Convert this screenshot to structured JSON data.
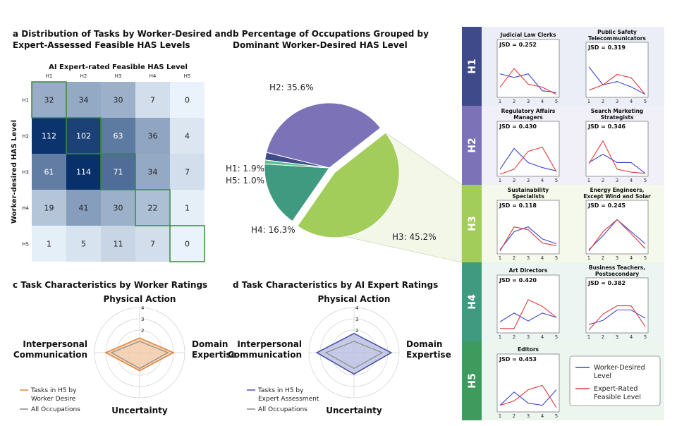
{
  "panels": {
    "a": {
      "letter": "a",
      "title1": "Distribution of Tasks by Worker-Desired and",
      "title2": "Expert-Assessed Feasible HAS Levels"
    },
    "b": {
      "letter": "b",
      "title1": "Percentage of Occupations Grouped by",
      "title2": "Dominant Worker-Desired HAS Level"
    },
    "c": {
      "letter": "c",
      "title": "Task Characteristics by Worker Ratings"
    },
    "d": {
      "letter": "d",
      "title": "Task Characteristics by AI Expert Ratings"
    }
  },
  "chart_data": [
    {
      "type": "heatmap",
      "title": "AI Expert-rated Feasible HAS Level",
      "xlabel": "AI Expert-rated Feasible HAS Level",
      "ylabel": "Worker-desired HAS Level",
      "x_categories": [
        "H1",
        "H2",
        "H3",
        "H4",
        "H5"
      ],
      "y_categories": [
        "H1",
        "H2",
        "H3",
        "H4",
        "H5"
      ],
      "values": [
        [
          32,
          34,
          30,
          7,
          0
        ],
        [
          112,
          102,
          63,
          36,
          4
        ],
        [
          61,
          114,
          71,
          34,
          7
        ],
        [
          19,
          41,
          30,
          22,
          1
        ],
        [
          1,
          5,
          11,
          7,
          0
        ]
      ],
      "color_max": 114,
      "low_color": "#eaf3fb",
      "high_color": "#08306b",
      "highlight_color": "#3a8a3a"
    },
    {
      "type": "pie",
      "labels": [
        "H1: 1.9%",
        "H2: 35.6%",
        "H3: 45.2%",
        "H4: 16.3%",
        "H5: 1.0%"
      ],
      "categories": [
        "H1",
        "H2",
        "H3",
        "H4",
        "H5"
      ],
      "values": [
        1.9,
        35.6,
        45.2,
        16.3,
        1.0
      ],
      "colors": [
        "#3f4a8a",
        "#7b72b8",
        "#a2cd5a",
        "#3f9a80",
        "#5cc08a"
      ]
    },
    {
      "type": "radar",
      "axes": [
        "Physical Action",
        "Domain Expertise",
        "Uncertainty",
        "Interpersonal Communication"
      ],
      "axis_lines": [
        [
          "Physical Action"
        ],
        [
          "Domain",
          "Expertise"
        ],
        [
          "Uncertainty"
        ],
        [
          "Interpersonal",
          "Communication"
        ]
      ],
      "rlim": [
        0,
        4
      ],
      "rings": [
        1,
        2,
        3,
        4
      ],
      "tick_labels": [
        "2",
        "3",
        "4"
      ],
      "series": [
        {
          "name": "Tasks in H5 by Worker Desire",
          "legend_lines": [
            "Tasks in H5 by",
            "Worker Desire"
          ],
          "values": [
            1.3,
            3.0,
            1.6,
            3.0
          ],
          "color": "#e8823a",
          "fill": "#f3c8a4"
        },
        {
          "name": "All Occupations",
          "legend_lines": [
            "All Occupations"
          ],
          "values": [
            1.0,
            2.5,
            1.4,
            2.5
          ],
          "color": "#8a8a8a",
          "fill": "none"
        }
      ]
    },
    {
      "type": "radar",
      "axes": [
        "Physical Action",
        "Domain Expertise",
        "Uncertainty",
        "Interpersonal Communication"
      ],
      "axis_lines": [
        [
          "Physical Action"
        ],
        [
          "Domain",
          "Expertise"
        ],
        [
          "Uncertainty"
        ],
        [
          "Interpersonal",
          "Communication"
        ]
      ],
      "rlim": [
        0,
        4
      ],
      "rings": [
        1,
        2,
        3,
        4
      ],
      "tick_labels": [
        "2",
        "3",
        "4"
      ],
      "series": [
        {
          "name": "Tasks in H5 by Expert Assessment",
          "legend_lines": [
            "Tasks in H5 by",
            "Expert Assessment"
          ],
          "values": [
            1.7,
            3.3,
            1.9,
            3.3
          ],
          "color": "#4a55a8",
          "fill": "#b8bde0"
        },
        {
          "name": "All Occupations",
          "legend_lines": [
            "All Occupations"
          ],
          "values": [
            1.0,
            2.5,
            1.4,
            2.5
          ],
          "color": "#8a8a8a",
          "fill": "none"
        }
      ]
    },
    {
      "type": "line",
      "x": [
        1,
        2,
        3,
        4,
        5
      ],
      "ylim": [
        0,
        1
      ],
      "series_names": [
        "Worker-Desired Level",
        "Expert-Rated Feasible Level"
      ],
      "series_colors": [
        "#3a46d0",
        "#e03a3a"
      ],
      "legend_lines": [
        [
          "Worker-Desired",
          "Level"
        ],
        [
          "Expert-Rated",
          "Feasible Level"
        ]
      ],
      "groups": [
        {
          "label": "H1",
          "color": "#3f4a8a",
          "bg": "#eceef7",
          "plots": [
            {
              "title": [
                "Judicial Law Clerks"
              ],
              "jsd": "JSD = 0.252",
              "worker": [
                0.48,
                0.4,
                0.48,
                0.1,
                0.06
              ],
              "expert": [
                0.18,
                0.6,
                0.25,
                0.18,
                0.02
              ]
            },
            {
              "title": [
                "Public Safety",
                "Telecommunicators"
              ],
              "jsd": "JSD = 0.319",
              "worker": [
                0.68,
                0.25,
                0.33,
                0.2,
                0.02
              ],
              "expert": [
                0.12,
                0.25,
                0.5,
                0.42,
                0.02
              ]
            }
          ]
        },
        {
          "label": "H2",
          "color": "#7b72b8",
          "bg": "#f1eff8",
          "plots": [
            {
              "title": [
                "Regulatory Affairs",
                "Managers"
              ],
              "jsd": "JSD = 0.430",
              "worker": [
                0.12,
                0.62,
                0.28,
                0.16,
                0.08
              ],
              "expert": [
                0.0,
                0.12,
                0.55,
                0.65,
                0.06
              ]
            },
            {
              "title": [
                "Search Marketing",
                "Strategists"
              ],
              "jsd": "JSD = 0.346",
              "worker": [
                0.28,
                0.48,
                0.28,
                0.28,
                0.02
              ],
              "expert": [
                0.25,
                0.8,
                0.12,
                0.05,
                0.02
              ]
            }
          ]
        },
        {
          "label": "H3",
          "color": "#a2cd5a",
          "bg": "#f5f9ec",
          "plots": [
            {
              "title": [
                "Sustainability",
                "Specialists"
              ],
              "jsd": "JSD = 0.118",
              "worker": [
                0.05,
                0.5,
                0.62,
                0.32,
                0.2
              ],
              "expert": [
                0.02,
                0.62,
                0.55,
                0.22,
                0.15
              ]
            },
            {
              "title": [
                "Energy Engineers,",
                "Except Wind and Solar"
              ],
              "jsd": "JSD = 0.245",
              "worker": [
                0.05,
                0.4,
                0.8,
                0.5,
                0.2
              ],
              "expert": [
                0.02,
                0.5,
                0.8,
                0.45,
                0.08
              ]
            }
          ]
        },
        {
          "label": "H4",
          "color": "#3f9a80",
          "bg": "#ecf5f1",
          "plots": [
            {
              "title": [
                "Art Directors"
              ],
              "jsd": "JSD = 0.420",
              "worker": [
                0.2,
                0.4,
                0.22,
                0.4,
                0.3
              ],
              "expert": [
                0.05,
                0.05,
                0.7,
                0.55,
                0.3
              ]
            },
            {
              "title": [
                "Business Teachers,",
                "Postsecondary"
              ],
              "jsd": "JSD = 0.382",
              "worker": [
                0.15,
                0.25,
                0.5,
                0.5,
                0.3
              ],
              "expert": [
                0.02,
                0.4,
                0.6,
                0.6,
                0.1
              ]
            }
          ]
        },
        {
          "label": "H5",
          "color": "#3f9a5e",
          "bg": "#ecf5ee",
          "plots": [
            {
              "title": [
                "Editors"
              ],
              "jsd": "JSD = 0.453",
              "worker": [
                0.1,
                0.4,
                0.15,
                0.1,
                0.45
              ],
              "expert": [
                0.1,
                0.2,
                0.45,
                0.55,
                0.05
              ]
            }
          ]
        }
      ]
    }
  ]
}
